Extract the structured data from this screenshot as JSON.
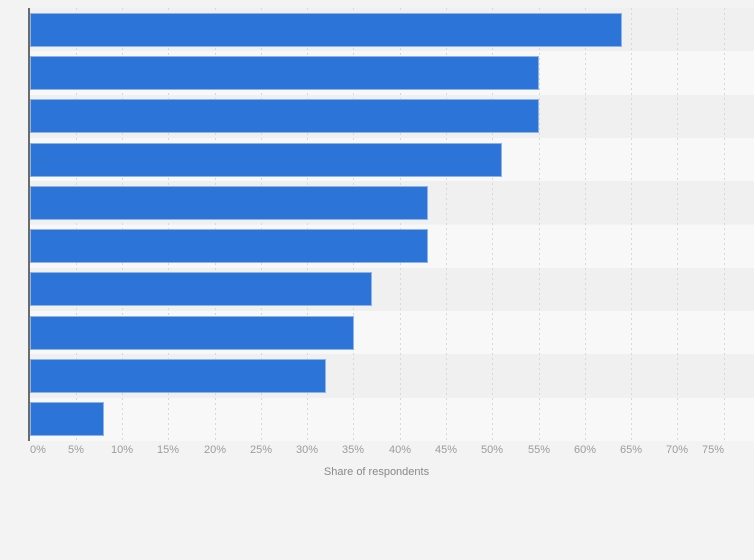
{
  "chart_data": {
    "type": "bar",
    "orientation": "horizontal",
    "title": "",
    "xlabel": "Share of respondents",
    "ylabel": "",
    "categories": [
      "",
      "",
      "",
      "",
      "",
      "",
      "",
      "",
      "",
      ""
    ],
    "values": [
      64,
      55,
      55,
      51,
      43,
      43,
      37,
      35,
      32,
      8
    ],
    "value_unit": "%",
    "xlim": [
      0,
      75
    ],
    "x_tick_step": 5,
    "x_tick_labels": [
      "0%",
      "5%",
      "10%",
      "15%",
      "20%",
      "25%",
      "30%",
      "35%",
      "40%",
      "45%",
      "50%",
      "55%",
      "60%",
      "65%",
      "70%",
      "75%"
    ],
    "grid": "vertical-dotted",
    "row_bands": "alternating",
    "legend_position": "none",
    "colors": {
      "bar_fill": "#2c74d8",
      "bar_border": "#8fb3e6",
      "page_background": "#f3f3f3",
      "band_dark": "#f0f0f0",
      "band_light": "#f8f8f8",
      "gridline": "#d8d8d8",
      "axis_line": "#6b6b6b",
      "tick_label": "#9c9c9c",
      "axis_title": "#898989"
    }
  }
}
